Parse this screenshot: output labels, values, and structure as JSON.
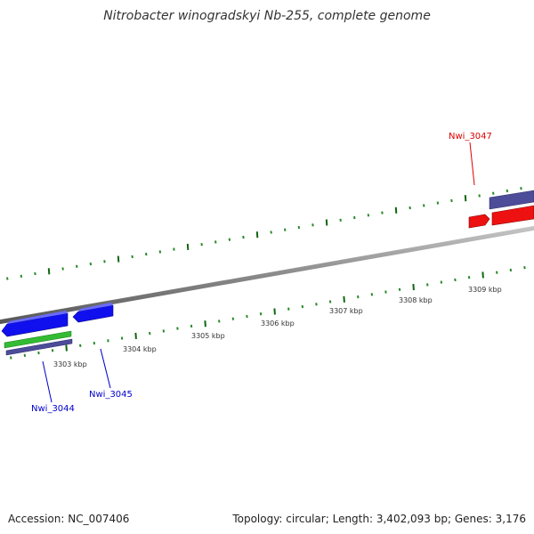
{
  "title": "Nitrobacter winogradskyi Nb-255, complete genome",
  "footer": {
    "accession_label": "Accession:",
    "accession": "NC_007406",
    "topology_label": "Topology:",
    "topology": "circular",
    "length_label": "Length:",
    "length": "3,402,093 bp",
    "genes_label": "Genes:",
    "genes": "3,176"
  },
  "scale": {
    "unit": "kbp",
    "labels": [
      "3303 kbp",
      "3304 kbp",
      "3305 kbp",
      "3306 kbp",
      "3307 kbp",
      "3308 kbp",
      "3309 kbp"
    ]
  },
  "colors": {
    "backbone": "#888888",
    "tick_dark": "#106610",
    "tick_light": "#2a8a2a",
    "gene_blue": "#1010ee",
    "gene_green": "#33bb33",
    "gene_purple": "#4c4c99",
    "gene_red": "#ee1111",
    "label_blue": "#0000cc",
    "label_red": "#dd0000"
  },
  "genes": [
    {
      "label": "Nwi_3044",
      "color": "blue",
      "strand": "reverse"
    },
    {
      "label": "Nwi_3045",
      "color": "blue",
      "strand": "reverse"
    },
    {
      "label": "Nwi_3047",
      "color": "red",
      "strand": "forward"
    }
  ]
}
